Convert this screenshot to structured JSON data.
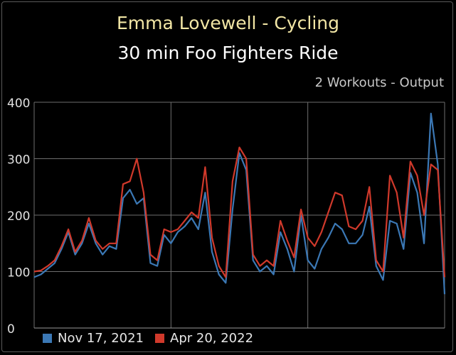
{
  "header": {
    "title": "Emma Lovewell - Cycling",
    "subtitle": "30 min Foo Fighters Ride",
    "caption": "2 Workouts - Output"
  },
  "colors": {
    "blue": "#3b78b5",
    "red": "#d0392b",
    "grid": "#6e6e6e",
    "axis": "#e0e0e0"
  },
  "chart_data": {
    "type": "line",
    "title": "30 min Foo Fighters Ride",
    "ylim": [
      0,
      400
    ],
    "yticks": [
      "0",
      "100",
      "200",
      "300",
      "400"
    ],
    "x_domain_minutes": [
      0,
      30
    ],
    "legend_position": "bottom-left",
    "grid": true,
    "series": [
      {
        "name": "Nov 17, 2021",
        "color": "#3b78b5",
        "x": [
          0,
          0.5,
          1,
          1.5,
          2,
          2.5,
          3,
          3.5,
          4,
          4.5,
          5,
          5.5,
          6,
          6.5,
          7,
          7.5,
          8,
          8.5,
          9,
          9.5,
          10,
          10.5,
          11,
          11.5,
          12,
          12.5,
          13,
          13.5,
          14,
          14.5,
          15,
          15.5,
          16,
          16.5,
          17,
          17.5,
          18,
          18.5,
          19,
          19.5,
          20,
          20.5,
          21,
          21.5,
          22,
          22.5,
          23,
          23.5,
          24,
          24.5,
          25,
          25.5,
          26,
          26.5,
          27,
          27.5,
          28,
          28.5,
          29,
          29.5,
          30
        ],
        "values": [
          90,
          95,
          105,
          115,
          140,
          170,
          130,
          150,
          185,
          150,
          130,
          145,
          140,
          230,
          245,
          220,
          230,
          115,
          110,
          165,
          150,
          170,
          180,
          195,
          175,
          240,
          135,
          95,
          80,
          210,
          310,
          280,
          120,
          100,
          110,
          95,
          170,
          140,
          100,
          200,
          120,
          105,
          140,
          160,
          185,
          175,
          150,
          150,
          165,
          215,
          110,
          85,
          190,
          185,
          140,
          275,
          240,
          150,
          380,
          290,
          60
        ]
      },
      {
        "name": "Apr 20, 2022",
        "color": "#d0392b",
        "x": [
          0,
          0.5,
          1,
          1.5,
          2,
          2.5,
          3,
          3.5,
          4,
          4.5,
          5,
          5.5,
          6,
          6.5,
          7,
          7.5,
          8,
          8.5,
          9,
          9.5,
          10,
          10.5,
          11,
          11.5,
          12,
          12.5,
          13,
          13.5,
          14,
          14.5,
          15,
          15.5,
          16,
          16.5,
          17,
          17.5,
          18,
          18.5,
          19,
          19.5,
          20,
          20.5,
          21,
          21.5,
          22,
          22.5,
          23,
          23.5,
          24,
          24.5,
          25,
          25.5,
          26,
          26.5,
          27,
          27.5,
          28,
          28.5,
          29,
          29.5,
          30
        ],
        "values": [
          100,
          102,
          110,
          120,
          145,
          175,
          135,
          155,
          195,
          155,
          140,
          150,
          150,
          255,
          260,
          300,
          240,
          130,
          120,
          175,
          170,
          175,
          190,
          205,
          195,
          285,
          160,
          110,
          90,
          260,
          320,
          300,
          130,
          110,
          120,
          110,
          190,
          155,
          125,
          210,
          160,
          145,
          170,
          205,
          240,
          235,
          180,
          175,
          190,
          250,
          120,
          100,
          270,
          240,
          160,
          295,
          270,
          200,
          290,
          280,
          90
        ]
      }
    ]
  }
}
